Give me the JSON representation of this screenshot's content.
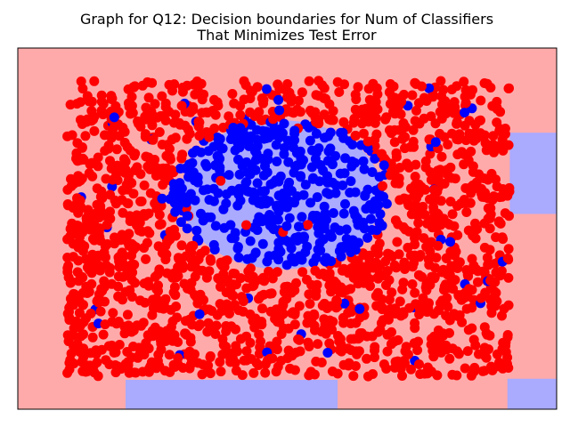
{
  "chart_data": {
    "type": "scatter",
    "title": [
      "Graph for Q12: Decision boundaries for Num of Classifiers",
      "That Minimizes Test Error"
    ],
    "xlabel": "",
    "ylabel": "",
    "xlim": [
      -2.3,
      2.3
    ],
    "ylim": [
      -1.6,
      1.6
    ],
    "grid": false,
    "axes_ticks": false,
    "classes": [
      {
        "name": "class_red",
        "point_color": "#ff0000",
        "region_color": "#ffaaaa"
      },
      {
        "name": "class_blue",
        "point_color": "#0000ff",
        "region_color": "#aaaaff"
      }
    ],
    "decision_regions": [
      {
        "label": "background",
        "class": "class_red",
        "x": [
          -2.3,
          2.3
        ],
        "y": [
          -1.6,
          1.6
        ]
      },
      {
        "label": "ellipse-center",
        "class": "class_blue",
        "shape": "ellipse",
        "cx": -0.05,
        "cy": 0.3,
        "rx": 0.86,
        "ry": 0.66
      },
      {
        "label": "right-band",
        "class": "class_blue",
        "x": [
          1.9,
          2.3
        ],
        "y": [
          0.13,
          0.85
        ]
      },
      {
        "label": "bottom-band",
        "class": "class_blue",
        "x": [
          -1.38,
          0.43
        ],
        "y": [
          -1.6,
          -1.34
        ]
      },
      {
        "label": "bottom-right-band",
        "class": "class_blue",
        "x": [
          1.88,
          2.3
        ],
        "y": [
          -1.6,
          -1.33
        ]
      }
    ],
    "sample_distribution": {
      "x_range": [
        -1.88,
        1.9
      ],
      "y_range": [
        -1.31,
        1.31
      ],
      "red_count": 1650,
      "blue_inside_ellipse": 400,
      "noise_blue_outside": 40,
      "noise_red_inside": 8,
      "boundary": {
        "cx": -0.05,
        "cy": 0.3,
        "rx": 0.96,
        "ry": 0.66
      },
      "seed": 12
    }
  }
}
